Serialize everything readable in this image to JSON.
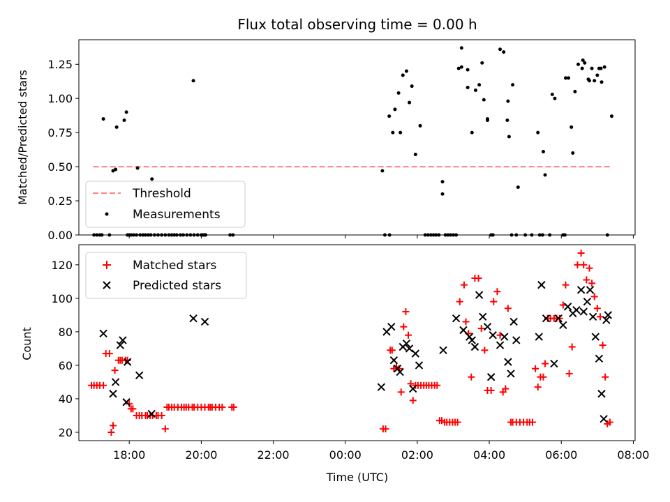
{
  "chart_data": [
    {
      "type": "scatter",
      "title": "Flux total observing time = 0.00 h",
      "xlabel": "",
      "ylabel": "Matched/Predicted stars",
      "x_unit": "hours since 00:00 UTC (evening hours negative)",
      "xlim": [
        -7.4,
        8.05
      ],
      "ylim": [
        0,
        1.43
      ],
      "yticks": [
        "0.00",
        "0.25",
        "0.50",
        "0.75",
        "1.00",
        "1.25"
      ],
      "ytick_values": [
        0,
        0.25,
        0.5,
        0.75,
        1.0,
        1.25
      ],
      "threshold": {
        "name": "Threshold",
        "y": 0.5,
        "x_start": -7.0,
        "x_end": 7.4,
        "color": "#ff8080"
      },
      "legend": {
        "position": "lower-left",
        "entries": [
          "Threshold",
          "Measurements"
        ]
      },
      "series": [
        {
          "name": "Measurements",
          "color": "#000000",
          "marker": "dot",
          "x": [
            -6.72,
            -6.45,
            -6.38,
            -6.35,
            -6.14,
            -6.08,
            -5.77,
            -5.37,
            -4.22,
            -3.9,
            -6.98,
            -6.9,
            -6.82,
            -6.76,
            -6.55,
            -6.05,
            -6.0,
            -5.95,
            -5.88,
            -5.8,
            -5.7,
            -5.62,
            -5.55,
            -5.47,
            -5.4,
            -5.3,
            -5.2,
            -5.1,
            -5.0,
            -4.9,
            -4.82,
            -4.75,
            -4.68,
            -4.58,
            -4.5,
            -4.4,
            -4.3,
            -4.2,
            -4.1,
            -4.0,
            -3.95,
            -3.88,
            -3.2,
            -3.12,
            1.03,
            1.22,
            1.32,
            1.38,
            1.48,
            1.53,
            1.6,
            1.7,
            1.78,
            1.85,
            1.95,
            2.08,
            1.1,
            1.23,
            2.22,
            2.3,
            2.38,
            2.45,
            2.52,
            2.6,
            2.7,
            2.7,
            2.78,
            2.85,
            2.92,
            3.0,
            3.08,
            3.15,
            3.23,
            3.4,
            3.62,
            3.8,
            3.95,
            4.1,
            4.3,
            4.5,
            4.65,
            4.8,
            5.0,
            5.18,
            5.35,
            5.5,
            5.75,
            6.1,
            6.32,
            6.6,
            6.75,
            6.92,
            7.1,
            7.4,
            3.23,
            3.4,
            3.52,
            3.72,
            3.85,
            3.95,
            4.05,
            4.4,
            4.52,
            4.55,
            4.62,
            4.75,
            5.4,
            5.48,
            5.55,
            5.68,
            5.82,
            6.05,
            6.12,
            6.2,
            6.28,
            6.38,
            6.47,
            6.58,
            6.65,
            6.78,
            6.85,
            7.0,
            7.05,
            7.12,
            7.2,
            7.28
          ],
          "y": [
            0.85,
            0.47,
            0.48,
            0.79,
            0.84,
            0.9,
            0.49,
            0.41,
            1.13,
            0.0,
            0.0,
            0.0,
            0.0,
            0.0,
            0.0,
            0.0,
            0.0,
            0.0,
            0.0,
            0.0,
            0.0,
            0.0,
            0.0,
            0.0,
            0.0,
            0.0,
            0.0,
            0.0,
            0.0,
            0.0,
            0.0,
            0.0,
            0.0,
            0.0,
            0.0,
            0.0,
            0.0,
            0.0,
            0.0,
            0.0,
            0.0,
            0.0,
            0.0,
            0.0,
            0.47,
            0.87,
            0.75,
            0.92,
            1.04,
            0.75,
            1.17,
            1.2,
            0.97,
            1.09,
            0.59,
            0.8,
            0.0,
            0.0,
            0.0,
            0.0,
            0.0,
            0.0,
            0.0,
            0.0,
            0.39,
            0.3,
            0.0,
            0.0,
            0.0,
            0.0,
            0.0,
            1.22,
            1.37,
            1.21,
            1.06,
            1.26,
            0.84,
            0.0,
            1.36,
            0.84,
            1.1,
            0.35,
            0.0,
            0.0,
            0.75,
            0.61,
            1.03,
            0.0,
            0.6,
            1.28,
            1.14,
            1.13,
            1.22,
            0.87,
            1.23,
            1.08,
            0.75,
            1.1,
            0.99,
            0.85,
            0.0,
            1.34,
            0.98,
            0.72,
            0.0,
            0.0,
            0.0,
            0.0,
            0.44,
            0.0,
            1.0,
            0.0,
            1.15,
            1.15,
            0.79,
            1.05,
            1.25,
            1.22,
            1.26,
            1.13,
            1.22,
            1.17,
            1.22,
            1.12,
            1.23,
            0.0
          ]
        }
      ]
    },
    {
      "type": "scatter",
      "title": "",
      "xlabel": "Time (UTC)",
      "ylabel": "Count",
      "x_unit": "hours since 00:00 UTC (evening hours negative)",
      "xlim": [
        -7.4,
        8.05
      ],
      "ylim": [
        15,
        132
      ],
      "xticks": [
        "18:00",
        "20:00",
        "22:00",
        "00:00",
        "02:00",
        "04:00",
        "06:00",
        "08:00"
      ],
      "xtick_values": [
        -6,
        -4,
        -2,
        0,
        2,
        4,
        6,
        8
      ],
      "yticks": [
        "20",
        "40",
        "60",
        "80",
        "100",
        "120"
      ],
      "ytick_values": [
        20,
        40,
        60,
        80,
        100,
        120
      ],
      "legend": {
        "position": "upper-left",
        "entries": [
          "Matched stars",
          "Predicted stars"
        ]
      },
      "series": [
        {
          "name": "Matched stars",
          "color": "#ff0000",
          "marker": "plus",
          "x": [
            -7.05,
            -6.98,
            -6.9,
            -6.82,
            -6.72,
            -6.65,
            -6.55,
            -6.5,
            -6.45,
            -6.4,
            -6.3,
            -6.25,
            -6.2,
            -6.1,
            -6.05,
            -6.0,
            -5.95,
            -5.9,
            -5.8,
            -5.72,
            -5.65,
            -5.55,
            -5.5,
            -5.42,
            -5.35,
            -5.25,
            -5.2,
            -5.1,
            -5.0,
            -4.95,
            -4.9,
            -4.82,
            -4.75,
            -4.65,
            -4.55,
            -4.48,
            -4.42,
            -4.35,
            -4.25,
            -4.2,
            -4.1,
            -4.0,
            -3.9,
            -3.8,
            -3.75,
            -3.7,
            -3.6,
            -3.5,
            -3.42,
            -3.15,
            -3.1,
            1.05,
            1.12,
            1.25,
            1.3,
            1.35,
            1.42,
            1.5,
            1.55,
            1.62,
            1.68,
            1.75,
            1.82,
            1.88,
            1.95,
            2.02,
            2.1,
            2.18,
            2.25,
            2.32,
            2.4,
            2.48,
            2.55,
            2.62,
            2.68,
            2.76,
            2.82,
            2.9,
            2.98,
            3.05,
            3.12,
            3.18,
            3.3,
            3.35,
            3.42,
            3.5,
            3.6,
            3.7,
            3.78,
            3.87,
            3.95,
            4.05,
            4.12,
            4.22,
            4.3,
            4.38,
            4.45,
            4.52,
            4.6,
            4.65,
            4.75,
            4.85,
            4.95,
            5.05,
            5.12,
            5.2,
            5.28,
            5.35,
            5.42,
            5.5,
            5.55,
            5.62,
            5.7,
            5.8,
            5.87,
            5.95,
            6.05,
            6.12,
            6.22,
            6.3,
            6.45,
            6.55,
            6.62,
            6.7,
            6.78,
            6.85,
            6.92,
            7.0,
            7.08,
            7.15,
            7.22,
            7.28,
            7.35
          ],
          "y": [
            48,
            48,
            48,
            48,
            48,
            67,
            67,
            20,
            24,
            57,
            63,
            63,
            63,
            63,
            63,
            37,
            34,
            34,
            30,
            30,
            30,
            30,
            30,
            30,
            30,
            30,
            30,
            30,
            22,
            35,
            35,
            35,
            35,
            35,
            35,
            35,
            35,
            35,
            35,
            35,
            35,
            35,
            35,
            35,
            35,
            35,
            35,
            35,
            35,
            35,
            35,
            22,
            22,
            69,
            69,
            58,
            59,
            58,
            44,
            83,
            92,
            78,
            49,
            39,
            48,
            48,
            48,
            48,
            48,
            48,
            48,
            48,
            48,
            27,
            27,
            26,
            26,
            26,
            26,
            26,
            26,
            98,
            108,
            86,
            79,
            53,
            112,
            112,
            82,
            69,
            45,
            45,
            98,
            104,
            78,
            44,
            46,
            94,
            26,
            26,
            26,
            26,
            26,
            26,
            26,
            26,
            58,
            47,
            53,
            53,
            61,
            88,
            88,
            88,
            88,
            88,
            96,
            108,
            55,
            71,
            120,
            127,
            120,
            111,
            118,
            109,
            101,
            94,
            89,
            72,
            53,
            25,
            26
          ]
        },
        {
          "name": "Predicted stars",
          "color": "#000000",
          "marker": "x",
          "x": [
            -6.72,
            -6.45,
            -6.38,
            -6.25,
            -6.18,
            -6.08,
            -6.05,
            -5.72,
            -5.38,
            -4.22,
            -3.9,
            1.0,
            1.15,
            1.28,
            1.35,
            1.45,
            1.52,
            1.6,
            1.7,
            1.78,
            1.88,
            1.95,
            2.05,
            2.72,
            3.08,
            3.28,
            3.45,
            3.52,
            3.6,
            3.72,
            3.82,
            3.95,
            4.05,
            4.1,
            4.3,
            4.42,
            4.52,
            4.6,
            4.68,
            4.75,
            5.38,
            5.45,
            5.58,
            5.8,
            5.92,
            6.05,
            6.18,
            6.32,
            6.42,
            6.55,
            6.62,
            6.72,
            6.8,
            6.88,
            6.95,
            7.05,
            7.12,
            7.18,
            7.25,
            7.3
          ],
          "y": [
            79,
            43,
            50,
            72,
            75,
            38,
            62,
            54,
            31,
            88,
            86,
            47,
            80,
            83,
            63,
            58,
            56,
            71,
            73,
            70,
            46,
            67,
            60,
            69,
            88,
            81,
            77,
            75,
            71,
            102,
            89,
            83,
            53,
            78,
            72,
            77,
            62,
            55,
            86,
            75,
            77,
            108,
            88,
            61,
            88,
            84,
            95,
            91,
            93,
            105,
            92,
            98,
            105,
            89,
            77,
            64,
            43,
            28,
            87,
            90
          ]
        }
      ]
    }
  ]
}
